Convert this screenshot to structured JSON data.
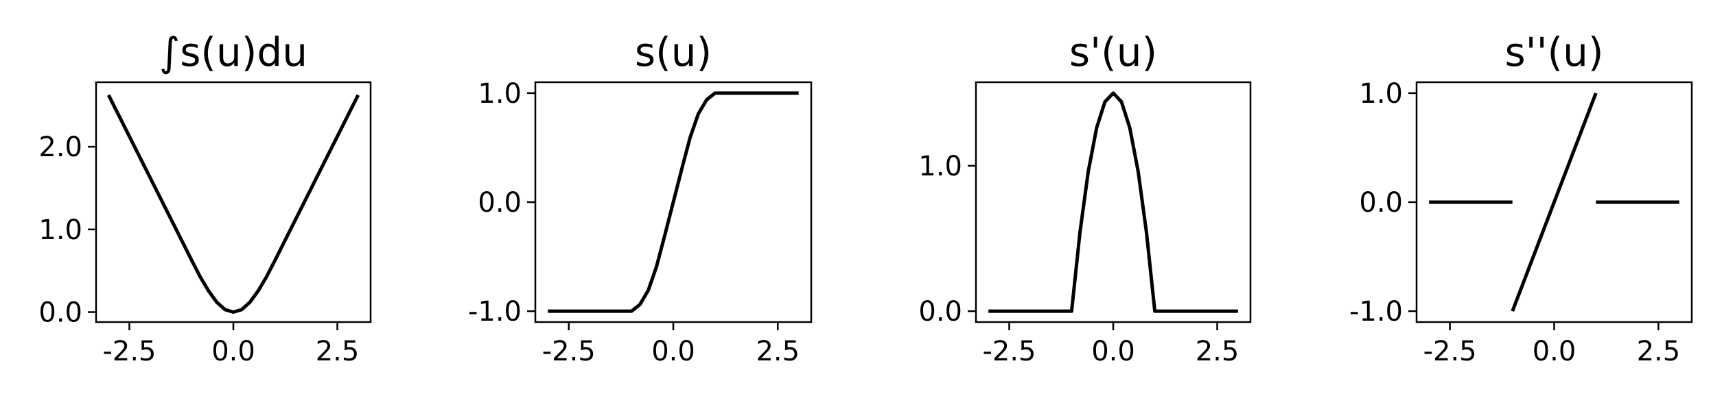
{
  "chart_data": [
    {
      "type": "line",
      "title": "∫s(u)du",
      "xlim": [
        -3.3,
        3.3
      ],
      "ylim": [
        -0.12,
        2.78
      ],
      "xticks": [
        -2.5,
        0.0,
        2.5
      ],
      "xtick_labels": [
        "-2.5",
        "0.0",
        "2.5"
      ],
      "yticks": [
        0.0,
        1.0,
        2.0
      ],
      "ytick_labels": [
        "0.0",
        "1.0",
        "2.0"
      ],
      "series": [
        {
          "x": [
            -3.0,
            -2.5,
            -2.0,
            -1.5,
            -1.0,
            -0.8,
            -0.6,
            -0.4,
            -0.2,
            0.0,
            0.2,
            0.4,
            0.6,
            0.8,
            1.0,
            1.5,
            2.0,
            2.5,
            3.0
          ],
          "y": [
            2.625,
            2.125,
            1.625,
            1.125,
            0.625,
            0.43,
            0.26,
            0.12,
            0.03,
            0.0,
            0.03,
            0.12,
            0.26,
            0.43,
            0.625,
            1.125,
            1.625,
            2.125,
            2.625
          ]
        }
      ],
      "grid": false
    },
    {
      "type": "line",
      "title": "s(u)",
      "xlim": [
        -3.3,
        3.3
      ],
      "ylim": [
        -1.1,
        1.1
      ],
      "xticks": [
        -2.5,
        0.0,
        2.5
      ],
      "xtick_labels": [
        "-2.5",
        "0.0",
        "2.5"
      ],
      "yticks": [
        -1.0,
        0.0,
        1.0
      ],
      "ytick_labels": [
        "-1.0",
        "0.0",
        "1.0"
      ],
      "series": [
        {
          "x": [
            -3.0,
            -1.0,
            -0.8,
            -0.6,
            -0.4,
            -0.2,
            0.0,
            0.2,
            0.4,
            0.6,
            0.8,
            1.0,
            3.0
          ],
          "y": [
            -1.0,
            -1.0,
            -0.94,
            -0.81,
            -0.59,
            -0.3,
            0.0,
            0.3,
            0.59,
            0.81,
            0.94,
            1.0,
            1.0
          ]
        }
      ],
      "grid": false
    },
    {
      "type": "line",
      "title": "s'(u)",
      "xlim": [
        -3.3,
        3.3
      ],
      "ylim": [
        -0.075,
        1.575
      ],
      "xticks": [
        -2.5,
        0.0,
        2.5
      ],
      "xtick_labels": [
        "-2.5",
        "0.0",
        "2.5"
      ],
      "yticks": [
        0.0,
        1.0
      ],
      "ytick_labels": [
        "0.0",
        "1.0"
      ],
      "series": [
        {
          "x": [
            -3.0,
            -1.0,
            -0.8,
            -0.6,
            -0.4,
            -0.2,
            0.0,
            0.2,
            0.4,
            0.6,
            0.8,
            1.0,
            3.0
          ],
          "y": [
            0.0,
            0.0,
            0.54,
            0.96,
            1.26,
            1.44,
            1.5,
            1.44,
            1.26,
            0.96,
            0.54,
            0.0,
            0.0
          ]
        }
      ],
      "grid": false
    },
    {
      "type": "line",
      "title": "s''(u)",
      "xlim": [
        -3.3,
        3.3
      ],
      "ylim": [
        -1.1,
        1.1
      ],
      "xticks": [
        -2.5,
        0.0,
        2.5
      ],
      "xtick_labels": [
        "-2.5",
        "0.0",
        "2.5"
      ],
      "yticks": [
        -1.0,
        0.0,
        1.0
      ],
      "ytick_labels": [
        "-1.0",
        "0.0",
        "1.0"
      ],
      "series": [
        {
          "x": [
            -3.0,
            -1.0
          ],
          "y": [
            0.0,
            0.0
          ]
        },
        {
          "x": [
            -1.0,
            1.0
          ],
          "y": [
            -1.0,
            1.0
          ]
        },
        {
          "x": [
            1.0,
            3.0
          ],
          "y": [
            0.0,
            0.0
          ]
        }
      ],
      "grid": false
    }
  ]
}
